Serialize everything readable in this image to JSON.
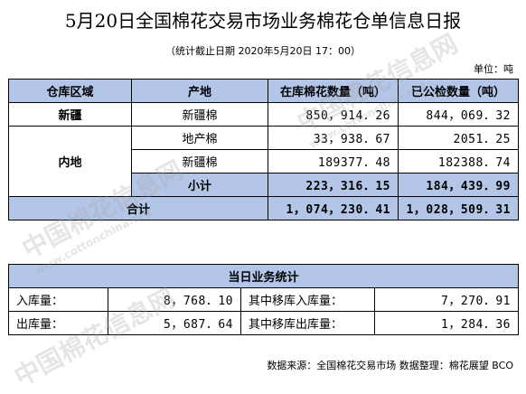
{
  "header": {
    "title": "5月20日全国棉花交易市场业务棉花仓单信息日报",
    "subtitle": "（统计截止日期 2020年5月20日 17：00）",
    "unit": "单位：吨"
  },
  "table1": {
    "headers": [
      "仓库区域",
      "产地",
      "在库棉花数量（吨）",
      "已公检数量（吨）"
    ],
    "xinjiang": {
      "region": "新疆",
      "origin": "新疆棉",
      "stock": "850，914．26",
      "inspected": "844，069．32"
    },
    "inland": {
      "region": "内地",
      "row1": {
        "origin": "地产棉",
        "stock": "33，938．67",
        "inspected": "2051．25"
      },
      "row2": {
        "origin": "新疆棉",
        "stock": "189377．48",
        "inspected": "182388．74"
      },
      "subtotal": {
        "label": "小计",
        "stock": "223，316．15",
        "inspected": "184，439．99"
      }
    },
    "total": {
      "label": "合计",
      "stock": "1，074，230．41",
      "inspected": "1，028，509．31"
    }
  },
  "table2": {
    "title": "当日业务统计",
    "rows": [
      {
        "label1": "入库量：",
        "value1": "8，768．10",
        "label2": "其中移库入库量：",
        "value2": "7，270．91"
      },
      {
        "label1": "出库量：",
        "value1": "5，687．64",
        "label2": "其中移库出库量：",
        "value2": "1，284．36"
      }
    ]
  },
  "footer": {
    "source": "数据来源：全国棉花交易市场 数据整理：棉花展望 BCO"
  },
  "watermark": {
    "main": "中国棉花信息网",
    "sub": "www.cottonchina.org"
  }
}
